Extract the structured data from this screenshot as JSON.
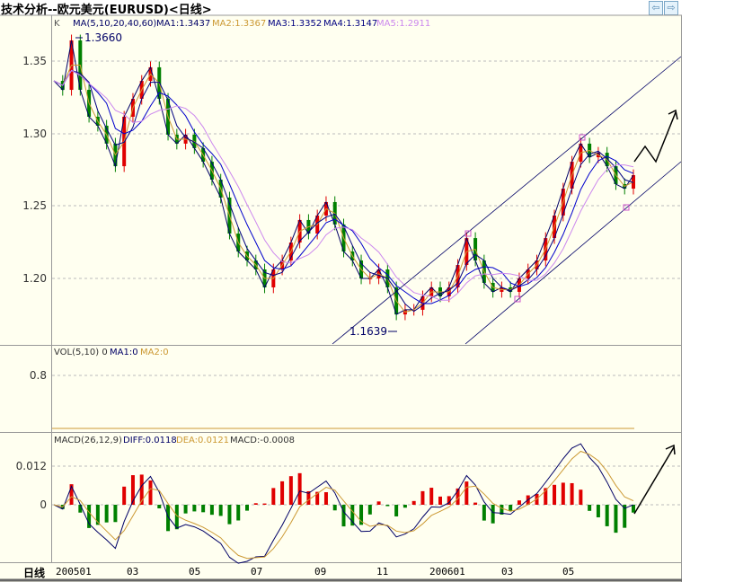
{
  "header": {
    "title": "技术分析--欧元美元(EURUSD)<日线>",
    "nav_prev": "⇦",
    "nav_next": "⇨"
  },
  "main_panel": {
    "label": "K",
    "ma_params": "MA(5,10,20,40,60)",
    "ma1": "MA1:1.3437",
    "ma2": "MA2:1.3367",
    "ma3": "MA3:1.3352",
    "ma4": "MA4:1.3147",
    "ma5": "MA5:1.2911",
    "high_annotation": "1.3660",
    "low_annotation": "1.1639"
  },
  "vol_panel": {
    "params": "VOL(5,10) 0",
    "ma1": "MA1:0",
    "ma2": "MA2:0"
  },
  "macd_panel": {
    "params": "MACD(26,12,9)",
    "diff": "DIFF:0.0118",
    "dea": "DEA:0.0121",
    "macd": "MACD:-0.0008"
  },
  "axis": {
    "period_label": "日线"
  },
  "colors": {
    "background": "#fffff0",
    "up": "#e00000",
    "down": "#008000",
    "ma1": "#000066",
    "ma2": "#cc9933",
    "ma3": "#000080",
    "ma4": "#0000cc",
    "ma5": "#cc88ee",
    "grid": "#bbbbbb"
  },
  "chart_data": {
    "type": "candlestick",
    "title": "技术分析--欧元美元(EURUSD)<日线>",
    "y_ticks": [
      "1.35",
      "1.30",
      "1.25",
      "1.20"
    ],
    "ylim": [
      1.16,
      1.375
    ],
    "vol_y_ticks": [
      "0.8"
    ],
    "macd_y_ticks": [
      "0.012",
      "0"
    ],
    "x_ticks": [
      "200501",
      "03",
      "05",
      "07",
      "09",
      "11",
      "200601",
      "03",
      "05"
    ],
    "close": [
      1.3363,
      1.3301,
      1.3643,
      1.3301,
      1.3115,
      1.3053,
      1.2929,
      1.2773,
      1.3115,
      1.3239,
      1.3363,
      1.3457,
      1.3239,
      1.2991,
      1.2929,
      1.2991,
      1.2898,
      1.2804,
      1.268,
      1.2556,
      1.2307,
      1.2183,
      1.2121,
      1.2059,
      1.1935,
      1.2059,
      1.2121,
      1.2245,
      1.2401,
      1.2307,
      1.2432,
      1.2525,
      1.237,
      1.2183,
      1.2121,
      1.1997,
      1.1997,
      1.2059,
      1.1935,
      1.1748,
      1.178,
      1.178,
      1.1873,
      1.1935,
      1.1873,
      1.1935,
      1.209,
      1.2276,
      1.2121,
      1.1966,
      1.1904,
      1.1935,
      1.1904,
      1.1997,
      1.2059,
      1.2121,
      1.2276,
      1.2432,
      1.2618,
      1.2804,
      1.2929,
      1.2835,
      1.2866,
      1.2773,
      1.2649,
      1.2618,
      1.2711
    ],
    "grid": true
  }
}
